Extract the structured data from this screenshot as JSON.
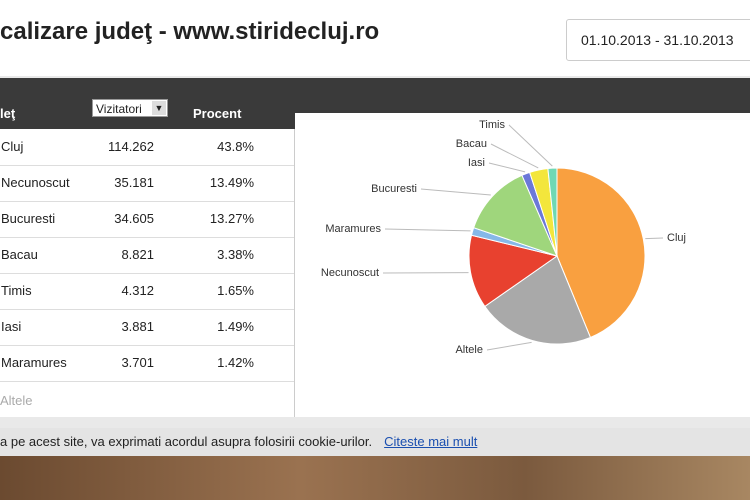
{
  "header": {
    "title": "calizare judeţ - www.stiridecluj.ro",
    "date_range": "01.10.2013 - 31.10.2013"
  },
  "table": {
    "columns": [
      "leţ",
      "Vizitatori",
      "Procent"
    ],
    "rows": [
      [
        "Cluj",
        "114.262",
        "43.8%"
      ],
      [
        "Necunoscut",
        "35.181",
        "13.49%"
      ],
      [
        "Bucuresti",
        "34.605",
        "13.27%"
      ],
      [
        "Bacau",
        "8.821",
        "3.38%"
      ],
      [
        "Timis",
        "4.312",
        "1.65%"
      ],
      [
        "Iasi",
        "3.881",
        "1.49%"
      ],
      [
        "Maramures",
        "3.701",
        "1.42%"
      ]
    ],
    "more": "Altele"
  },
  "chart_data": {
    "type": "pie",
    "categories": [
      "Cluj",
      "Altele",
      "Necunoscut",
      "Maramures",
      "Bucuresti",
      "Iasi",
      "Bacau",
      "Timis"
    ],
    "values": [
      43.8,
      21.5,
      13.49,
      1.42,
      13.27,
      1.49,
      3.38,
      1.65
    ],
    "colors": [
      "#f9a040",
      "#a9a9a9",
      "#e8412f",
      "#86b8e8",
      "#9fd67c",
      "#6b78d8",
      "#f3e63c",
      "#6fd8b4"
    ]
  },
  "cookie_bar": {
    "text": "a pe acest site, va exprimati acordul asupra folosirii cookie-urilor.",
    "link": "Citeste mai mult"
  }
}
